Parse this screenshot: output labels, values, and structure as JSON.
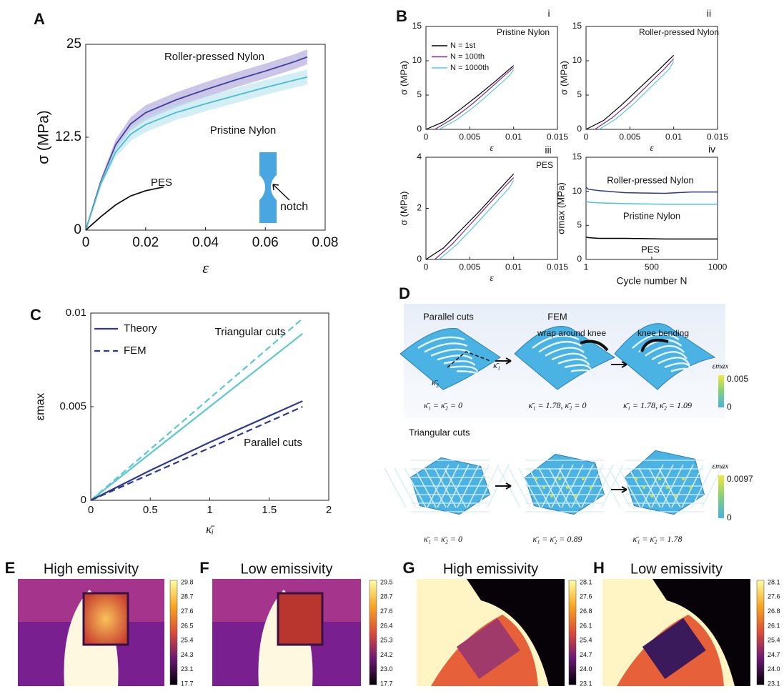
{
  "chart_data": [
    {
      "type": "line",
      "panel": "A",
      "xlabel": "ε",
      "ylabel": "σ (MPa)",
      "xlim": [
        0,
        0.08
      ],
      "xticks": [
        0,
        0.02,
        0.04,
        0.06,
        0.08
      ],
      "ylim": [
        0,
        25
      ],
      "yticks": [
        0,
        12.5,
        25
      ],
      "annotations": [
        "notch"
      ],
      "series": [
        {
          "name": "Roller-pressed Nylon",
          "color": "#3d3f9a",
          "band_color": "#a99fd8",
          "x": [
            0,
            0.005,
            0.01,
            0.015,
            0.02,
            0.03,
            0.04,
            0.05,
            0.06,
            0.07,
            0.074
          ],
          "values": [
            0,
            6.5,
            11.5,
            14.3,
            15.8,
            17.5,
            18.9,
            20.2,
            21.4,
            22.7,
            23.3
          ],
          "errors": [
            0,
            0.4,
            0.7,
            0.9,
            1,
            1,
            1,
            1,
            1,
            1,
            1
          ]
        },
        {
          "name": "Pristine Nylon",
          "color": "#4bbcd0",
          "band_color": "#b5e3ec",
          "x": [
            0,
            0.005,
            0.01,
            0.015,
            0.02,
            0.03,
            0.04,
            0.05,
            0.06,
            0.07,
            0.074
          ],
          "values": [
            0,
            6.2,
            10.5,
            12.9,
            14.2,
            15.8,
            17,
            18.1,
            19.2,
            20.2,
            20.6
          ],
          "errors": [
            0,
            0.4,
            0.7,
            0.9,
            1,
            1,
            1,
            1,
            1,
            1,
            1
          ]
        },
        {
          "name": "PES",
          "color": "#111111",
          "x": [
            0,
            0.005,
            0.01,
            0.015,
            0.02,
            0.026
          ],
          "values": [
            0,
            1.8,
            3.4,
            4.6,
            5.3,
            5.8
          ]
        }
      ]
    },
    {
      "type": "line",
      "panel": "B",
      "xlabel": "ε",
      "ylabel": "σ (MPa)",
      "xlim": [
        0,
        0.015
      ],
      "xticks": [
        0,
        0.005,
        0.01,
        0.015
      ],
      "ylim": [
        0,
        15
      ],
      "yticks": [
        0,
        5,
        10,
        15
      ],
      "annotations": [
        "i",
        "Pristine Nylon"
      ],
      "legend": "upper left",
      "series": [
        {
          "name": "N = 1st",
          "color": "#000000",
          "x": [
            0,
            0.002,
            0.004,
            0.006,
            0.008,
            0.01
          ],
          "values": [
            0,
            1.1,
            3,
            5,
            7.1,
            9.3
          ]
        },
        {
          "name": "N = 100th",
          "color": "#7b2d8e",
          "x": [
            0.001,
            0.003,
            0.005,
            0.007,
            0.009,
            0.01
          ],
          "values": [
            0,
            1.5,
            3.4,
            5.6,
            7.9,
            9
          ]
        },
        {
          "name": "N = 1000th",
          "color": "#5bc8d8",
          "x": [
            0.0015,
            0.0035,
            0.0055,
            0.0075,
            0.0095,
            0.01
          ],
          "values": [
            0,
            1.4,
            3.3,
            5.5,
            7.8,
            8.7
          ]
        }
      ]
    },
    {
      "type": "line",
      "xlabel": "ε",
      "ylabel": "σ (MPa)",
      "xlim": [
        0,
        0.015
      ],
      "xticks": [
        0,
        0.005,
        0.01,
        0.015
      ],
      "ylim": [
        0,
        15
      ],
      "yticks": [
        0,
        5,
        10,
        15
      ],
      "annotations": [
        "ii",
        "Roller-pressed Nylon"
      ],
      "series": [
        {
          "color": "#000000",
          "x": [
            0,
            0.002,
            0.004,
            0.006,
            0.008,
            0.01
          ],
          "values": [
            0,
            1.3,
            3.5,
            5.9,
            8.3,
            10.8
          ]
        },
        {
          "color": "#7b2d8e",
          "x": [
            0.001,
            0.003,
            0.005,
            0.007,
            0.009,
            0.01
          ],
          "values": [
            0,
            1.7,
            3.9,
            6.4,
            8.9,
            10.3
          ]
        },
        {
          "color": "#5bc8d8",
          "x": [
            0.0015,
            0.0035,
            0.0055,
            0.0075,
            0.0095,
            0.01
          ],
          "values": [
            0,
            1.6,
            3.8,
            6.3,
            8.8,
            9.9
          ]
        }
      ]
    },
    {
      "type": "line",
      "xlabel": "ε",
      "ylabel": "σ (MPa)",
      "xlim": [
        0,
        0.015
      ],
      "xticks": [
        0,
        0.005,
        0.01,
        0.015
      ],
      "ylim": [
        0,
        4
      ],
      "yticks": [
        0,
        2,
        4
      ],
      "annotations": [
        "iii",
        "PES"
      ],
      "series": [
        {
          "color": "#000000",
          "x": [
            0,
            0.002,
            0.004,
            0.006,
            0.008,
            0.01
          ],
          "values": [
            0,
            0.45,
            1.15,
            1.85,
            2.6,
            3.35
          ]
        },
        {
          "color": "#7b2d8e",
          "x": [
            0.001,
            0.003,
            0.005,
            0.007,
            0.009,
            0.01
          ],
          "values": [
            0,
            0.6,
            1.35,
            2.1,
            2.85,
            3.2
          ]
        },
        {
          "color": "#5bc8d8",
          "x": [
            0.0015,
            0.0035,
            0.0055,
            0.0075,
            0.0095,
            0.01
          ],
          "values": [
            0,
            0.58,
            1.3,
            2.05,
            2.8,
            3.1
          ]
        }
      ]
    },
    {
      "type": "line",
      "xlabel": "Cycle number N",
      "ylabel": "σmax (MPa)",
      "xlim": [
        1,
        1000
      ],
      "xticks": [
        1,
        500,
        1000
      ],
      "ylim": [
        0,
        15
      ],
      "yticks": [
        0,
        5,
        10,
        15
      ],
      "annotations": [
        "iv"
      ],
      "series": [
        {
          "name": "Roller-pressed Nylon",
          "color": "#2e3a8c",
          "x": [
            1,
            20,
            100,
            300,
            600,
            800,
            1000
          ],
          "values": [
            10.6,
            10.3,
            10.1,
            9.8,
            9.7,
            9.9,
            9.9
          ]
        },
        {
          "name": "Pristine Nylon",
          "color": "#4bc4d6",
          "x": [
            1,
            20,
            100,
            300,
            600,
            800,
            1000
          ],
          "values": [
            8.6,
            8.4,
            8.3,
            8.2,
            8.1,
            8.1,
            8.1
          ]
        },
        {
          "name": "PES",
          "color": "#000000",
          "x": [
            1,
            20,
            100,
            300,
            600,
            800,
            1000
          ],
          "values": [
            3.3,
            3.2,
            3.1,
            3.1,
            3,
            3,
            3
          ]
        }
      ]
    },
    {
      "type": "line",
      "panel": "C",
      "xlabel": "κ̄ᵢ",
      "ylabel": "εmax",
      "xlim": [
        0,
        2
      ],
      "xticks": [
        0,
        0.5,
        1,
        1.5,
        2
      ],
      "ylim": [
        0,
        0.01
      ],
      "yticks": [
        0,
        0.005,
        0.01
      ],
      "annotations": [
        "Triangular cuts",
        "Parallel cuts"
      ],
      "legend": [
        {
          "label": "Theory",
          "color": "#2e3a8c",
          "dashed": false
        },
        {
          "label": "FEM",
          "color": "#2e3a8c",
          "dashed": true
        }
      ],
      "series": [
        {
          "color": "#5bc8d0",
          "dashed": false,
          "x": [
            0,
            1.78
          ],
          "values": [
            0,
            0.0089
          ]
        },
        {
          "color": "#5bc8d0",
          "dashed": true,
          "x": [
            0,
            1.78
          ],
          "values": [
            0,
            0.0097
          ]
        },
        {
          "color": "#2e3a8c",
          "dashed": false,
          "x": [
            0,
            0.5,
            1,
            1.78
          ],
          "values": [
            0,
            0.0016,
            0.0031,
            0.0053
          ]
        },
        {
          "color": "#2e3a8c",
          "dashed": true,
          "x": [
            0,
            0.5,
            1,
            1.78
          ],
          "values": [
            0,
            0.0014,
            0.0028,
            0.005
          ]
        }
      ]
    }
  ],
  "panel_d": {
    "letter": "D",
    "rows": [
      {
        "title": "Parallel cuts",
        "header": "FEM",
        "actions": [
          "wrap around knee",
          "knee bending"
        ],
        "axes": [
          "κ̄₂",
          "κ̄₁"
        ],
        "steps": [
          "κ̄₁ = κ̄₂ = 0",
          "κ̄₁ = 1.78, κ̄₂ = 0",
          "κ̄₁ = 1.78, κ̄₂ = 1.09"
        ],
        "colorbar": {
          "label": "εmax",
          "ticks": [
            "0.005",
            "0"
          ]
        }
      },
      {
        "title": "Triangular cuts",
        "steps": [
          "κ̄₁ = κ̄₂ = 0",
          "κ̄₁ = κ̄₂ = 0.89",
          "κ̄₁ = κ̄₂ = 1.78"
        ],
        "colorbar": {
          "label": "εmax",
          "ticks": [
            "0.0097",
            "0"
          ]
        }
      }
    ]
  },
  "thermal_panels": [
    {
      "letter": "E",
      "title": "High emissivity",
      "scale": [
        "29.8",
        "28.7",
        "27.6",
        "26.5",
        "25.4",
        "24.3",
        "23.1",
        "17.7"
      ]
    },
    {
      "letter": "F",
      "title": "Low emissivity",
      "scale": [
        "29.5",
        "28.7",
        "27.6",
        "26.4",
        "25.3",
        "24.2",
        "23.0",
        "17.7"
      ]
    },
    {
      "letter": "G",
      "title": "High emissivity",
      "scale": [
        "28.1",
        "27.6",
        "26.8",
        "26.1",
        "25.4",
        "24.7",
        "24.0",
        "23.1"
      ]
    },
    {
      "letter": "H",
      "title": "Low emissivity",
      "scale": [
        "28.1",
        "27.6",
        "26.8",
        "26.1",
        "25.4",
        "24.7",
        "24.0",
        "23.1"
      ]
    }
  ]
}
